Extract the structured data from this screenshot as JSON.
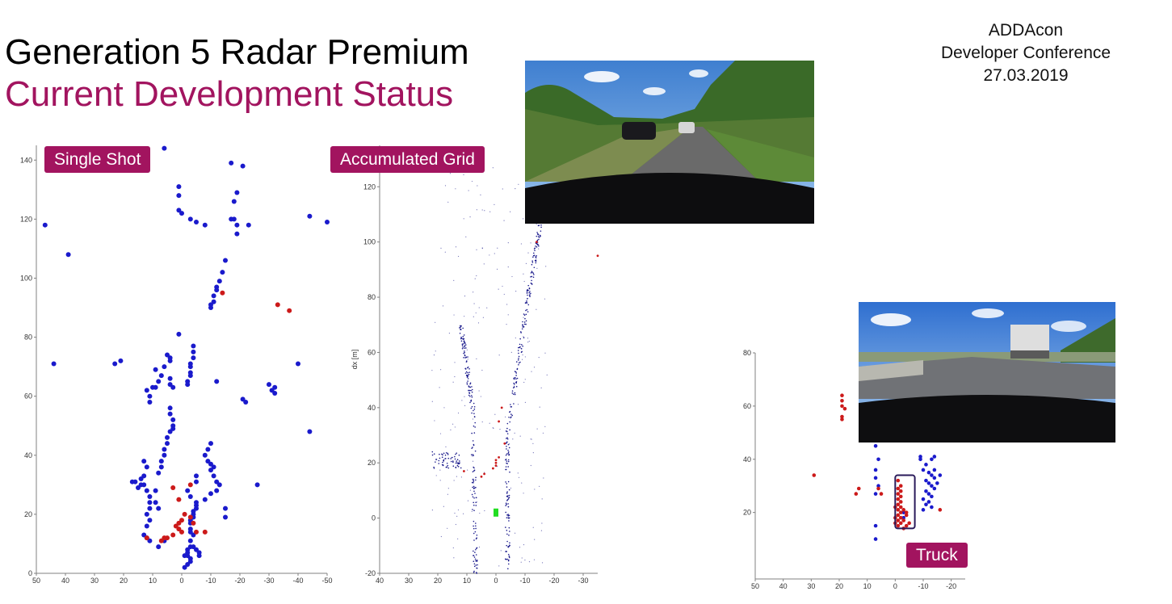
{
  "slide": {
    "title": "Generation 5 Radar Premium",
    "subtitle": "Current Development Status",
    "event_lines": [
      "ADDAcon",
      "Developer Conference",
      "27.03.2019"
    ],
    "accent_color": "#a2145f"
  },
  "labels": {
    "single_shot": "Single Shot",
    "accumulated_grid": "Accumulated Grid",
    "truck": "Truck"
  },
  "chart_data": [
    {
      "type": "scatter",
      "name_label": "Single Shot",
      "xlim": [
        50,
        -50
      ],
      "ylim": [
        0,
        145
      ],
      "x_ticks": [
        50,
        40,
        30,
        20,
        10,
        0,
        -10,
        -20,
        -30,
        -40,
        -50
      ],
      "y_ticks": [
        0,
        20,
        40,
        60,
        80,
        100,
        120,
        140
      ],
      "grid": false,
      "series": [
        {
          "color": "#1a1acc",
          "points": [
            [
              6,
              144
            ],
            [
              1,
              131
            ],
            [
              -17,
              139
            ],
            [
              -21,
              138
            ],
            [
              1,
              128
            ],
            [
              1,
              123
            ],
            [
              0,
              122
            ],
            [
              -3,
              120
            ],
            [
              -5,
              119
            ],
            [
              -8,
              118
            ],
            [
              -18,
              126
            ],
            [
              -19,
              129
            ],
            [
              -17,
              120
            ],
            [
              -18,
              120
            ],
            [
              -19,
              118
            ],
            [
              -19,
              115
            ],
            [
              -23,
              118
            ],
            [
              47,
              118
            ],
            [
              -50,
              119
            ],
            [
              -44,
              121
            ],
            [
              39,
              108
            ],
            [
              -15,
              106
            ],
            [
              -14,
              102
            ],
            [
              -13,
              99
            ],
            [
              -12,
              97
            ],
            [
              -12,
              96
            ],
            [
              -11,
              94
            ],
            [
              -11,
              92
            ],
            [
              -10,
              91
            ],
            [
              -10,
              90
            ],
            [
              44,
              71
            ],
            [
              23,
              71
            ],
            [
              21,
              72
            ],
            [
              1,
              81
            ],
            [
              5,
              74
            ],
            [
              4,
              73
            ],
            [
              4,
              72
            ],
            [
              -4,
              77
            ],
            [
              -4,
              75
            ],
            [
              -4,
              73
            ],
            [
              -3,
              71
            ],
            [
              -3,
              70
            ],
            [
              -3,
              68
            ],
            [
              -3,
              67
            ],
            [
              -2,
              65
            ],
            [
              -2,
              64
            ],
            [
              6,
              70
            ],
            [
              9,
              69
            ],
            [
              7,
              67
            ],
            [
              4,
              66
            ],
            [
              4,
              64
            ],
            [
              3,
              63
            ],
            [
              8,
              65
            ],
            [
              9,
              63
            ],
            [
              10,
              63
            ],
            [
              12,
              62
            ],
            [
              11,
              60
            ],
            [
              11,
              58
            ],
            [
              4,
              56
            ],
            [
              4,
              54
            ],
            [
              3,
              52
            ],
            [
              3,
              50
            ],
            [
              3,
              49
            ],
            [
              4,
              48
            ],
            [
              5,
              46
            ],
            [
              5,
              44
            ],
            [
              6,
              42
            ],
            [
              6,
              40
            ],
            [
              7,
              38
            ],
            [
              7,
              36
            ],
            [
              8,
              34
            ],
            [
              -12,
              65
            ],
            [
              -21,
              59
            ],
            [
              -22,
              58
            ],
            [
              -30,
              64
            ],
            [
              -31,
              62
            ],
            [
              -32,
              63
            ],
            [
              -32,
              61
            ],
            [
              -40,
              71
            ],
            [
              -44,
              48
            ],
            [
              -10,
              44
            ],
            [
              -9,
              42
            ],
            [
              -8,
              40
            ],
            [
              -9,
              38
            ],
            [
              -10,
              37
            ],
            [
              -11,
              36
            ],
            [
              -10,
              35
            ],
            [
              -11,
              33
            ],
            [
              -12,
              31
            ],
            [
              -13,
              30
            ],
            [
              -12,
              28
            ],
            [
              -10,
              27
            ],
            [
              -8,
              25
            ],
            [
              -5,
              24
            ],
            [
              -5,
              23
            ],
            [
              -5,
              22
            ],
            [
              -4,
              21
            ],
            [
              -4,
              20
            ],
            [
              -4,
              19
            ],
            [
              -3,
              18
            ],
            [
              -3,
              17
            ],
            [
              -3,
              15
            ],
            [
              -3,
              14
            ],
            [
              -4,
              13
            ],
            [
              -3,
              11
            ],
            [
              -3,
              9
            ],
            [
              -2,
              8
            ],
            [
              -2,
              7
            ],
            [
              -2,
              6
            ],
            [
              -3,
              5
            ],
            [
              -3,
              4
            ],
            [
              -2,
              3
            ],
            [
              -1,
              2
            ],
            [
              -4,
              9
            ],
            [
              -5,
              8
            ],
            [
              -6,
              7
            ],
            [
              -6,
              6
            ],
            [
              -1,
              6
            ],
            [
              13,
              38
            ],
            [
              12,
              36
            ],
            [
              13,
              33
            ],
            [
              14,
              32
            ],
            [
              13,
              30
            ],
            [
              14,
              30
            ],
            [
              12,
              28
            ],
            [
              11,
              26
            ],
            [
              11,
              24
            ],
            [
              11,
              22
            ],
            [
              12,
              20
            ],
            [
              11,
              18
            ],
            [
              12,
              16
            ],
            [
              13,
              13
            ],
            [
              12,
              12
            ],
            [
              11,
              11
            ],
            [
              17,
              31
            ],
            [
              16,
              31
            ],
            [
              15,
              29
            ],
            [
              9,
              24
            ],
            [
              8,
              22
            ],
            [
              9,
              28
            ],
            [
              -15,
              22
            ],
            [
              -15,
              19
            ],
            [
              -26,
              30
            ],
            [
              6,
              11
            ],
            [
              8,
              9
            ],
            [
              -3,
              26
            ],
            [
              -2,
              28
            ],
            [
              -5,
              31
            ],
            [
              -5,
              33
            ]
          ]
        },
        {
          "color": "#cc1a1a",
          "points": [
            [
              -14,
              95
            ],
            [
              -33,
              91
            ],
            [
              -37,
              89
            ],
            [
              3,
              29
            ],
            [
              1,
              25
            ],
            [
              -3,
              30
            ],
            [
              0,
              18
            ],
            [
              1,
              17
            ],
            [
              1,
              15
            ],
            [
              2,
              16
            ],
            [
              0,
              14
            ],
            [
              3,
              13
            ],
            [
              5,
              12
            ],
            [
              6,
              12
            ],
            [
              7,
              11
            ],
            [
              -5,
              14
            ],
            [
              -8,
              14
            ],
            [
              -3,
              19
            ],
            [
              -4,
              17
            ],
            [
              12,
              12
            ],
            [
              -1,
              20
            ]
          ]
        }
      ]
    },
    {
      "type": "scatter",
      "name_label": "Accumulated Grid",
      "xlim": [
        40,
        -35
      ],
      "ylim": [
        -20,
        135
      ],
      "x_ticks": [
        40,
        30,
        20,
        10,
        0,
        -10,
        -20,
        -30
      ],
      "y_ticks": [
        -20,
        0,
        20,
        40,
        60,
        80,
        100,
        120
      ],
      "ylabel": "dx [m]",
      "grid": false,
      "series": [
        {
          "color": "#1a1a8c",
          "kind": "density-trails"
        },
        {
          "color": "#cc1a1a",
          "points": [
            [
              -14,
              100
            ],
            [
              -35,
              95
            ],
            [
              -2,
              40
            ],
            [
              -1,
              22
            ],
            [
              0,
              21
            ],
            [
              0,
              20
            ],
            [
              0,
              19
            ],
            [
              1,
              18
            ],
            [
              4,
              16
            ],
            [
              5,
              15
            ],
            [
              -1,
              35
            ],
            [
              -3,
              27
            ],
            [
              11,
              17
            ]
          ]
        },
        {
          "color": "#22dd22",
          "kind": "ego-vehicle",
          "points": [
            [
              0,
              2
            ]
          ]
        }
      ]
    },
    {
      "type": "scatter",
      "name_label": "Truck",
      "xlim": [
        50,
        -25
      ],
      "ylim": [
        -5,
        80
      ],
      "x_ticks": [
        50,
        40,
        30,
        20,
        10,
        0,
        -10,
        -20
      ],
      "y_ticks": [
        20,
        40,
        60,
        80
      ],
      "grid": false,
      "series": [
        {
          "color": "#1a1acc",
          "points": [
            [
              7,
              45
            ],
            [
              6,
              40
            ],
            [
              7,
              36
            ],
            [
              7,
              33
            ],
            [
              6,
              30
            ],
            [
              7,
              27
            ],
            [
              7,
              15
            ],
            [
              7,
              10
            ],
            [
              -9,
              41
            ],
            [
              -9,
              40
            ],
            [
              -11,
              38
            ],
            [
              -13,
              40
            ],
            [
              -14,
              41
            ],
            [
              -10,
              36
            ],
            [
              -12,
              35
            ],
            [
              -13,
              34
            ],
            [
              -14,
              33
            ],
            [
              -11,
              32
            ],
            [
              -12,
              31
            ],
            [
              -13,
              30
            ],
            [
              -14,
              29
            ],
            [
              -11,
              28
            ],
            [
              -12,
              27
            ],
            [
              -13,
              26
            ],
            [
              -10,
              25
            ],
            [
              -12,
              24
            ],
            [
              -11,
              23
            ],
            [
              -13,
              22
            ],
            [
              -10,
              21
            ],
            [
              -3,
              18
            ],
            [
              -3,
              20
            ],
            [
              -14,
              36
            ],
            [
              -16,
              34
            ],
            [
              -15,
              31
            ]
          ]
        },
        {
          "color": "#cc1a1a",
          "points": [
            [
              19,
              64
            ],
            [
              19,
              62
            ],
            [
              19,
              60
            ],
            [
              18,
              59
            ],
            [
              19,
              56
            ],
            [
              19,
              55
            ],
            [
              29,
              34
            ],
            [
              13,
              29
            ],
            [
              14,
              27
            ],
            [
              6,
              29
            ],
            [
              5,
              27
            ],
            [
              -16,
              21
            ],
            [
              -1,
              32
            ],
            [
              -2,
              30
            ],
            [
              -1,
              29
            ],
            [
              -2,
              28
            ],
            [
              -1,
              27
            ],
            [
              -2,
              26
            ],
            [
              -1,
              25
            ],
            [
              -2,
              24
            ],
            [
              -1,
              23
            ],
            [
              -2,
              22
            ],
            [
              -1,
              21
            ],
            [
              -2,
              20
            ],
            [
              -1,
              19
            ],
            [
              -2,
              18
            ],
            [
              -1,
              17
            ],
            [
              -2,
              16
            ],
            [
              -1,
              15
            ],
            [
              -3,
              21
            ],
            [
              -4,
              19
            ],
            [
              -3,
              17
            ],
            [
              -4,
              15
            ],
            [
              -3,
              14
            ],
            [
              -5,
              16
            ],
            [
              -4,
              20
            ],
            [
              0,
              22
            ],
            [
              0,
              18
            ],
            [
              0,
              16
            ]
          ]
        }
      ],
      "annotation": {
        "label": "Truck",
        "shape": "rounded-rect",
        "xrange": [
          0,
          -7
        ],
        "yrange": [
          14,
          34
        ]
      }
    }
  ]
}
